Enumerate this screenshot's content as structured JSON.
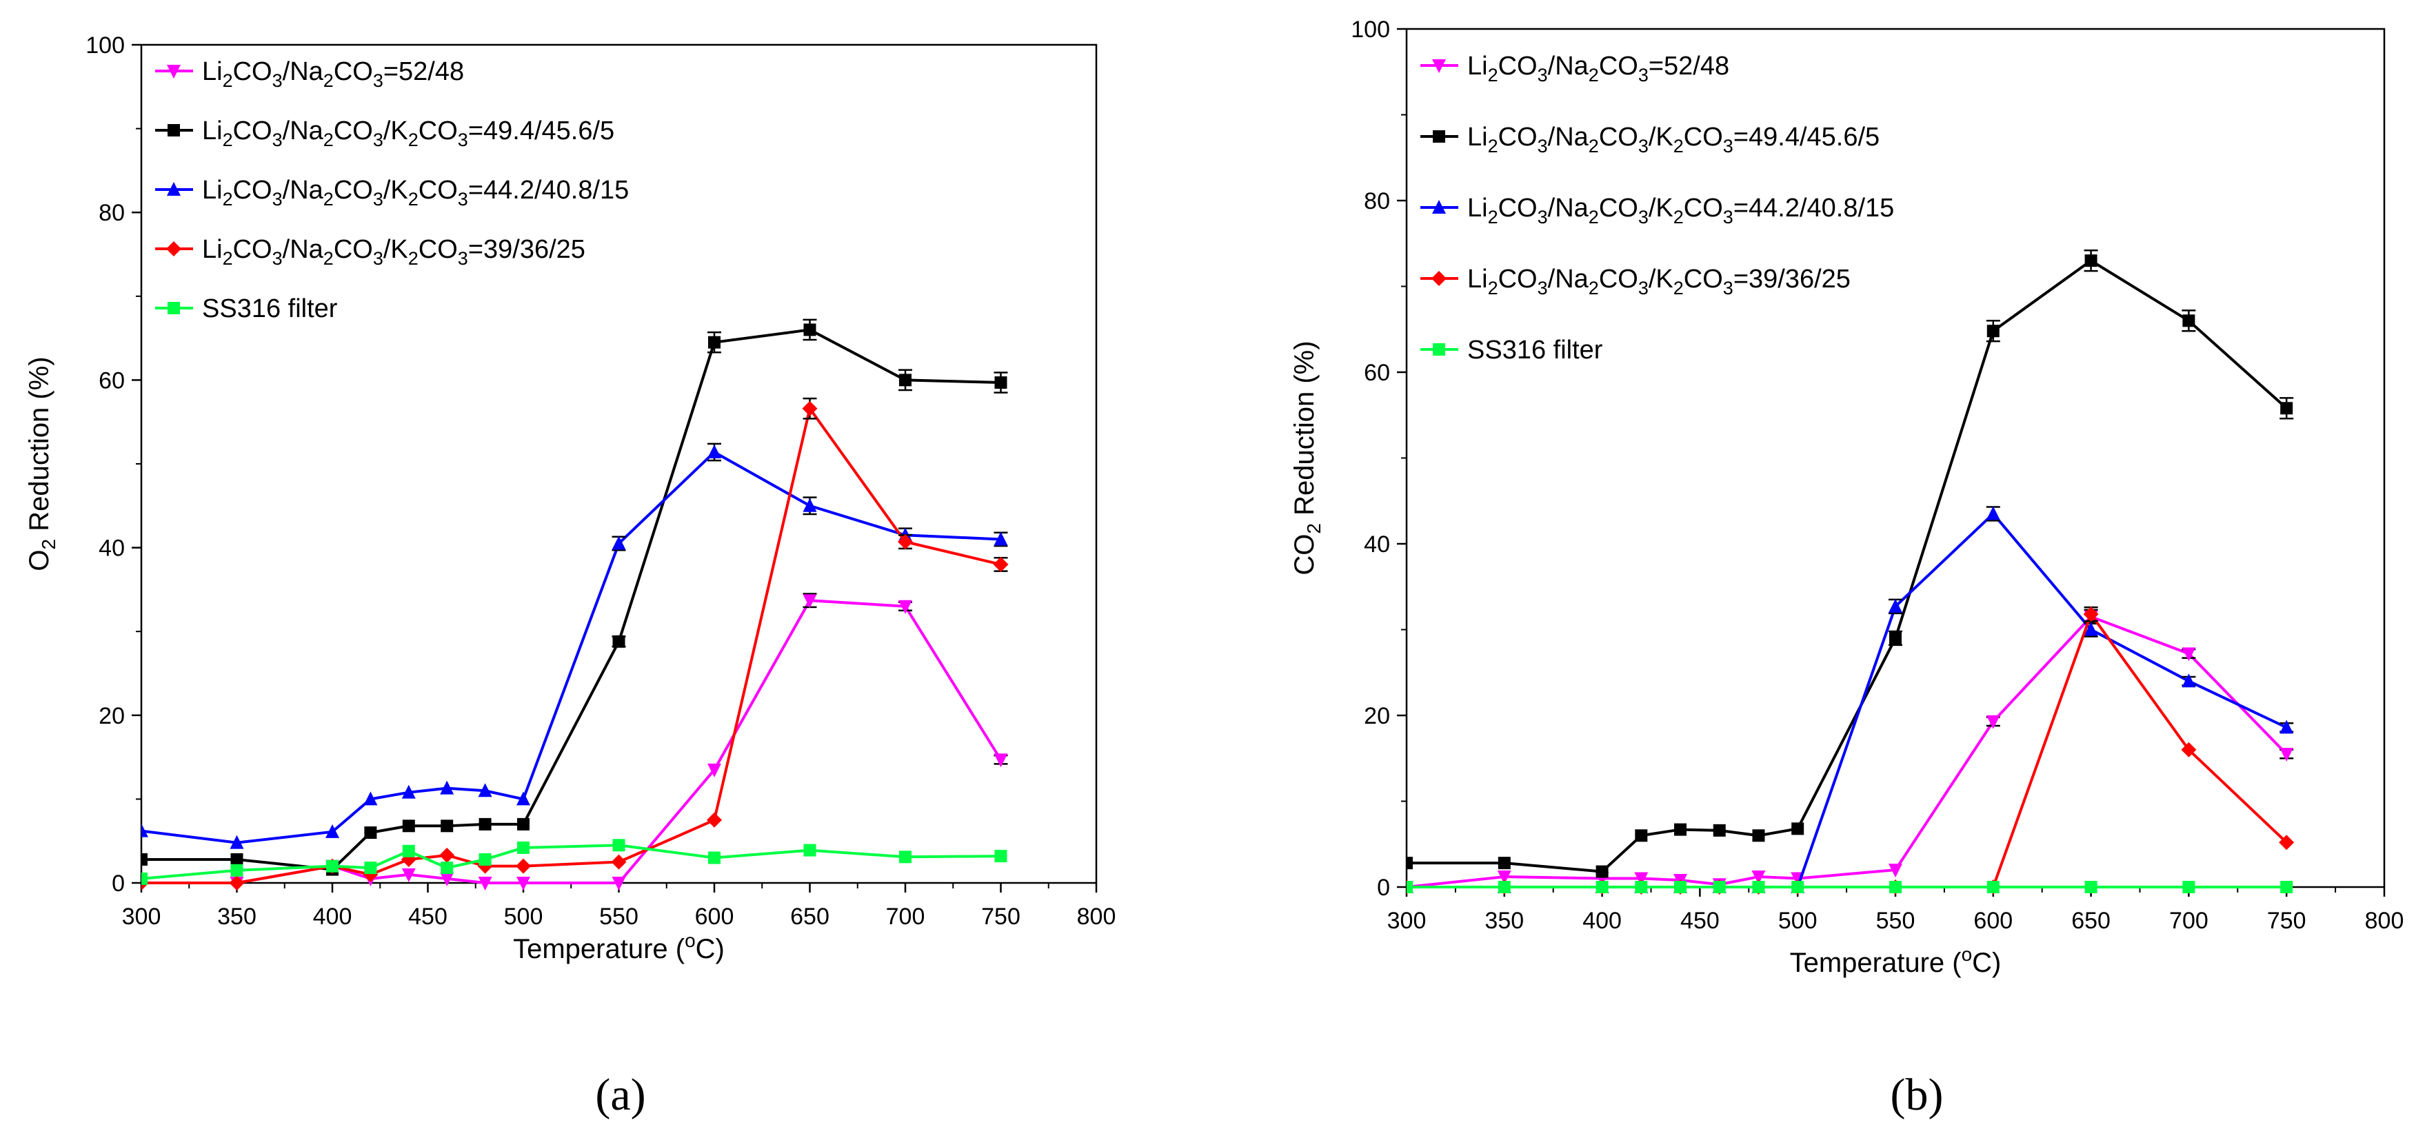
{
  "figure": {
    "panels": [
      {
        "id": "a",
        "panel_label": "(a)",
        "title": "",
        "xlabel": "Temperature (°C)",
        "xlabel_base": "Temperature (",
        "xlabel_sup": "o",
        "xlabel_tail": "C)",
        "ylabel": "O2 Reduction (%)",
        "ylabel_pre": "O",
        "ylabel_sub": "2",
        "ylabel_post": " Reduction (%)"
      },
      {
        "id": "b",
        "panel_label": "(b)",
        "title": "",
        "xlabel": "Temperature (°C)",
        "xlabel_base": "Temperature (",
        "xlabel_sup": "o",
        "xlabel_tail": "C)",
        "ylabel": "CO2 Reduction (%)",
        "ylabel_pre": "CO",
        "ylabel_sub": "2",
        "ylabel_post": " Reduction (%)"
      }
    ]
  },
  "chart_data": [
    {
      "type": "line",
      "panel": "(a)",
      "xlabel": "Temperature (oC)",
      "ylabel": "O2 Reduction (%)",
      "xlim": [
        300,
        800
      ],
      "ylim": [
        0,
        100
      ],
      "xticks": [
        300,
        350,
        400,
        450,
        500,
        550,
        600,
        650,
        700,
        750,
        800
      ],
      "yticks": [
        0,
        20,
        40,
        60,
        80,
        100
      ],
      "legend_position": "top-left",
      "series": [
        {
          "name": "Li2CO3/Na2CO3=52/48",
          "label_parts": [
            "Li",
            "2",
            "CO",
            "3",
            "/Na",
            "2",
            "CO",
            "3",
            "=52/48"
          ],
          "color": "#ff00ff",
          "marker": "triangle-down",
          "x": [
            300,
            350,
            400,
            420,
            440,
            460,
            480,
            500,
            550,
            600,
            650,
            700,
            750
          ],
          "y": [
            0,
            0,
            2,
            0.5,
            1,
            0.5,
            0,
            0,
            0,
            13.5,
            33.7,
            33,
            14.7
          ],
          "err": [
            0,
            0,
            0,
            0,
            0,
            0,
            0,
            0,
            0,
            0,
            0.8,
            0.5,
            0.5
          ]
        },
        {
          "name": "Li2CO3/Na2CO3/K2CO3=49.4/45.6/5",
          "label_parts": [
            "Li",
            "2",
            "CO",
            "3",
            "/Na",
            "2",
            "CO",
            "3",
            "/K",
            "2",
            "CO",
            "3",
            "=49.4/45.6/5"
          ],
          "color": "#000000",
          "marker": "square",
          "x": [
            300,
            350,
            400,
            420,
            440,
            460,
            480,
            500,
            550,
            600,
            650,
            700,
            750
          ],
          "y": [
            2.8,
            2.8,
            1.6,
            6,
            6.8,
            6.8,
            7,
            7,
            28.8,
            64.5,
            66,
            60,
            59.7
          ],
          "err": [
            0,
            0,
            0,
            0,
            0,
            0,
            0,
            0,
            0.6,
            1.2,
            1.2,
            1.2,
            1.2
          ]
        },
        {
          "name": "Li2CO3/Na2CO3/K2CO3=44.2/40.8/15",
          "label_parts": [
            "Li",
            "2",
            "CO",
            "3",
            "/Na",
            "2",
            "CO",
            "3",
            "/K",
            "2",
            "CO",
            "3",
            "=44.2/40.8/15"
          ],
          "color": "#0000ff",
          "marker": "triangle-up",
          "x": [
            300,
            350,
            400,
            420,
            440,
            460,
            480,
            500,
            550,
            600,
            650,
            700,
            750
          ],
          "y": [
            6.2,
            4.8,
            6.1,
            10,
            10.8,
            11.3,
            11,
            10,
            40.5,
            51.4,
            45,
            41.5,
            41
          ],
          "err": [
            0,
            0,
            0,
            0,
            0,
            0,
            0,
            0,
            0.8,
            1,
            1,
            0.8,
            0.8
          ]
        },
        {
          "name": "Li2CO3/Na2CO3/K2CO3=39/36/25",
          "label_parts": [
            "Li",
            "2",
            "CO",
            "3",
            "/Na",
            "2",
            "CO",
            "3",
            "/K",
            "2",
            "CO",
            "3",
            "=39/36/25"
          ],
          "color": "#ff0000",
          "marker": "diamond",
          "x": [
            300,
            350,
            400,
            420,
            440,
            460,
            480,
            500,
            550,
            600,
            650,
            700,
            750
          ],
          "y": [
            0,
            0,
            2,
            1,
            2.8,
            3.3,
            2,
            2,
            2.5,
            7.5,
            56.6,
            40.7,
            38
          ],
          "err": [
            0,
            0,
            0,
            0,
            0,
            0,
            0,
            0,
            0,
            0,
            1.2,
            0.8,
            0.8
          ]
        },
        {
          "name": "SS316 filter",
          "label_parts": [
            "SS316 filter"
          ],
          "color": "#00ff44",
          "marker": "square",
          "x": [
            300,
            350,
            400,
            420,
            440,
            460,
            480,
            500,
            550,
            600,
            650,
            700,
            750
          ],
          "y": [
            0.5,
            1.5,
            2,
            1.8,
            3.8,
            1.8,
            2.8,
            4.2,
            4.5,
            3,
            3.9,
            3.1,
            3.2
          ],
          "err": [
            0,
            0,
            0,
            0,
            0,
            0,
            0,
            0,
            0,
            0,
            0,
            0,
            0
          ]
        }
      ]
    },
    {
      "type": "line",
      "panel": "(b)",
      "xlabel": "Temperature (oC)",
      "ylabel": "CO2 Reduction (%)",
      "xlim": [
        300,
        800
      ],
      "ylim": [
        0,
        100
      ],
      "xticks": [
        300,
        350,
        400,
        450,
        500,
        550,
        600,
        650,
        700,
        750,
        800
      ],
      "yticks": [
        0,
        20,
        40,
        60,
        80,
        100
      ],
      "legend_position": "top-left",
      "series": [
        {
          "name": "Li2CO3/Na2CO3=52/48",
          "label_parts": [
            "Li",
            "2",
            "CO",
            "3",
            "/Na",
            "2",
            "CO",
            "3",
            "=52/48"
          ],
          "color": "#ff00ff",
          "marker": "triangle-down",
          "x": [
            300,
            350,
            400,
            420,
            440,
            460,
            480,
            500,
            550,
            600,
            650,
            700,
            750
          ],
          "y": [
            0,
            1.2,
            1,
            1,
            0.8,
            0.3,
            1.2,
            1,
            2,
            19.3,
            31.5,
            27.2,
            15.5
          ],
          "err": [
            0,
            0,
            0,
            0,
            0,
            0,
            0,
            0,
            0,
            0.5,
            0.8,
            0.5,
            0.5
          ]
        },
        {
          "name": "Li2CO3/Na2CO3/K2CO3=49.4/45.6/5",
          "label_parts": [
            "Li",
            "2",
            "CO",
            "3",
            "/Na",
            "2",
            "CO",
            "3",
            "/K",
            "2",
            "CO",
            "3",
            "=49.4/45.6/5"
          ],
          "color": "#000000",
          "marker": "square",
          "x": [
            300,
            350,
            400,
            420,
            440,
            460,
            480,
            500,
            550,
            600,
            650,
            700,
            750
          ],
          "y": [
            2.8,
            2.8,
            1.8,
            6,
            6.7,
            6.6,
            6,
            6.8,
            29,
            64.8,
            73,
            66,
            55.8
          ],
          "err": [
            0,
            0,
            0,
            0,
            0,
            0,
            0,
            0,
            0.8,
            1.2,
            1.2,
            1.2,
            1.2
          ]
        },
        {
          "name": "Li2CO3/Na2CO3/K2CO3=44.2/40.8/15",
          "label_parts": [
            "Li",
            "2",
            "CO",
            "3",
            "/Na",
            "2",
            "CO",
            "3",
            "/K",
            "2",
            "CO",
            "3",
            "=44.2/40.8/15"
          ],
          "color": "#0000ff",
          "marker": "triangle-up",
          "x": [
            300,
            350,
            400,
            420,
            440,
            460,
            480,
            500,
            550,
            600,
            650,
            700,
            750
          ],
          "y": [
            0,
            0,
            0,
            0,
            0,
            0,
            0,
            0,
            32.7,
            43.5,
            30,
            24,
            18.6
          ],
          "err": [
            0,
            0,
            0,
            0,
            0,
            0,
            0,
            0,
            0.8,
            0.8,
            0.8,
            0.5,
            0.5
          ]
        },
        {
          "name": "Li2CO3/Na2CO3/K2CO3=39/36/25",
          "label_parts": [
            "Li",
            "2",
            "CO",
            "3",
            "/Na",
            "2",
            "CO",
            "3",
            "/K",
            "2",
            "CO",
            "3",
            "=39/36/25"
          ],
          "color": "#ff0000",
          "marker": "diamond",
          "x": [
            300,
            350,
            400,
            420,
            440,
            460,
            480,
            500,
            550,
            600,
            650,
            700,
            750
          ],
          "y": [
            0,
            0,
            0,
            0,
            0,
            0,
            0,
            0,
            0,
            0,
            31.8,
            16,
            5.2
          ],
          "err": [
            0,
            0,
            0,
            0,
            0,
            0,
            0,
            0,
            0,
            0,
            0.8,
            0,
            0
          ]
        },
        {
          "name": "SS316 filter",
          "label_parts": [
            "SS316 filter"
          ],
          "color": "#00ff44",
          "marker": "square",
          "x": [
            300,
            350,
            400,
            420,
            440,
            460,
            480,
            500,
            550,
            600,
            650,
            700,
            750
          ],
          "y": [
            0,
            0,
            0,
            0,
            0,
            0,
            0,
            0,
            0,
            0,
            0,
            0,
            0
          ],
          "err": [
            0,
            0,
            0,
            0,
            0,
            0,
            0,
            0,
            0,
            0,
            0,
            0,
            0
          ]
        }
      ]
    }
  ]
}
